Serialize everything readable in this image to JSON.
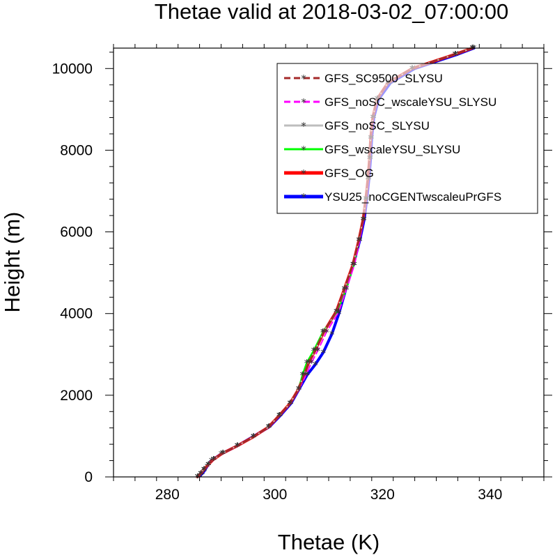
{
  "chart_data": {
    "type": "line",
    "title": "Thetae valid at 2018-03-02_07:00:00",
    "xlabel": "Thetae (K)",
    "ylabel": "Height (m)",
    "xlim": [
      270,
      350
    ],
    "ylim": [
      0,
      10500
    ],
    "xticks": [
      280,
      300,
      320,
      340
    ],
    "yticks": [
      0,
      2000,
      4000,
      6000,
      8000,
      10000
    ],
    "xtick_labels": [
      "280",
      "300",
      "320",
      "340"
    ],
    "ytick_labels": [
      "0",
      "2000",
      "4000",
      "6000",
      "8000",
      "10000"
    ],
    "grid": false,
    "legend_position": "top-right",
    "series": [
      {
        "name": "YSU25_noCGENTwscaleuPrGFS",
        "color": "#0000ff",
        "dash": "solid",
        "width": 4,
        "points": [
          [
            286.0,
            20
          ],
          [
            286.5,
            80
          ],
          [
            286.9,
            150
          ],
          [
            287.4,
            260
          ],
          [
            288.2,
            400
          ],
          [
            290.0,
            560
          ],
          [
            293.0,
            760
          ],
          [
            296.0,
            990
          ],
          [
            299.0,
            1230
          ],
          [
            301.0,
            1500
          ],
          [
            303.0,
            1800
          ],
          [
            304.5,
            2150
          ],
          [
            306.0,
            2500
          ],
          [
            307.5,
            2750
          ],
          [
            309.0,
            3050
          ],
          [
            310.6,
            3500
          ],
          [
            311.9,
            4000
          ],
          [
            313.2,
            4600
          ],
          [
            314.6,
            5200
          ],
          [
            315.8,
            5800
          ],
          [
            316.6,
            6300
          ],
          [
            317.1,
            6800
          ],
          [
            317.5,
            7300
          ],
          [
            317.8,
            7800
          ],
          [
            318.0,
            8300
          ],
          [
            318.4,
            8800
          ],
          [
            319.3,
            9250
          ],
          [
            321.5,
            9650
          ],
          [
            326.0,
            10000
          ],
          [
            334.0,
            10350
          ],
          [
            337.0,
            10500
          ]
        ]
      },
      {
        "name": "GFS_OG",
        "color": "#ff0000",
        "dash": "solid",
        "width": 4,
        "points": [
          [
            285.6,
            0
          ],
          [
            286.2,
            80
          ],
          [
            286.8,
            180
          ],
          [
            287.6,
            300
          ],
          [
            288.6,
            430
          ],
          [
            290.3,
            580
          ],
          [
            293.0,
            760
          ],
          [
            296.0,
            980
          ],
          [
            298.8,
            1220
          ],
          [
            300.8,
            1500
          ],
          [
            302.8,
            1800
          ],
          [
            304.4,
            2150
          ],
          [
            305.4,
            2500
          ],
          [
            306.3,
            2800
          ],
          [
            307.5,
            3100
          ],
          [
            309.1,
            3550
          ],
          [
            311.4,
            4050
          ],
          [
            312.9,
            4600
          ],
          [
            314.5,
            5200
          ],
          [
            315.6,
            5800
          ],
          [
            316.4,
            6300
          ],
          [
            316.9,
            6800
          ],
          [
            317.3,
            7300
          ],
          [
            317.6,
            7800
          ],
          [
            317.8,
            8300
          ],
          [
            318.2,
            8800
          ],
          [
            319.0,
            9250
          ],
          [
            321.0,
            9650
          ],
          [
            325.5,
            10000
          ],
          [
            333.5,
            10350
          ],
          [
            336.7,
            10500
          ]
        ]
      },
      {
        "name": "GFS_wscaleYSU_SLYSU",
        "color": "#00ff00",
        "dash": "solid",
        "width": 2,
        "points": [
          [
            285.6,
            0
          ],
          [
            286.2,
            80
          ],
          [
            286.8,
            180
          ],
          [
            287.6,
            300
          ],
          [
            288.6,
            430
          ],
          [
            290.3,
            580
          ],
          [
            293.0,
            760
          ],
          [
            296.0,
            980
          ],
          [
            298.8,
            1220
          ],
          [
            300.8,
            1500
          ],
          [
            302.8,
            1800
          ],
          [
            304.4,
            2150
          ],
          [
            305.1,
            2500
          ],
          [
            305.9,
            2800
          ],
          [
            307.2,
            3100
          ],
          [
            308.9,
            3550
          ],
          [
            311.6,
            4050
          ],
          [
            313.3,
            4600
          ],
          [
            314.7,
            5200
          ],
          [
            315.6,
            5800
          ],
          [
            316.4,
            6300
          ],
          [
            316.9,
            6800
          ],
          [
            317.3,
            7300
          ],
          [
            317.6,
            7800
          ],
          [
            317.8,
            8300
          ],
          [
            318.2,
            8800
          ],
          [
            319.0,
            9250
          ],
          [
            321.0,
            9650
          ],
          [
            325.5,
            10000
          ],
          [
            333.5,
            10350
          ],
          [
            336.7,
            10500
          ]
        ]
      },
      {
        "name": "GFS_noSC_SLYSU",
        "color": "#bdbdbd",
        "dash": "solid",
        "width": 2,
        "points": [
          [
            285.6,
            0
          ],
          [
            286.2,
            80
          ],
          [
            286.8,
            180
          ],
          [
            287.6,
            300
          ],
          [
            288.6,
            430
          ],
          [
            290.3,
            580
          ],
          [
            293.0,
            760
          ],
          [
            296.0,
            980
          ],
          [
            298.8,
            1220
          ],
          [
            300.8,
            1500
          ],
          [
            302.8,
            1800
          ],
          [
            304.4,
            2150
          ],
          [
            305.4,
            2500
          ],
          [
            306.3,
            2800
          ],
          [
            307.5,
            3100
          ],
          [
            309.1,
            3550
          ],
          [
            311.4,
            4050
          ],
          [
            312.9,
            4600
          ],
          [
            314.5,
            5200
          ],
          [
            315.6,
            5800
          ],
          [
            316.4,
            6300
          ],
          [
            316.9,
            6800
          ],
          [
            317.3,
            7300
          ],
          [
            317.6,
            7800
          ],
          [
            317.8,
            8300
          ],
          [
            318.2,
            8800
          ],
          [
            319.0,
            9250
          ],
          [
            321.0,
            9650
          ],
          [
            325.5,
            10000
          ],
          [
            333.5,
            10350
          ],
          [
            336.7,
            10500
          ]
        ]
      },
      {
        "name": "GFS_noSC_wscaleYSU_SLYSU",
        "color": "#ff00ff",
        "dash": "dashed",
        "width": 2,
        "points": [
          [
            285.7,
            0
          ],
          [
            286.3,
            80
          ],
          [
            286.9,
            180
          ],
          [
            287.7,
            300
          ],
          [
            288.7,
            430
          ],
          [
            290.4,
            580
          ],
          [
            293.1,
            760
          ],
          [
            296.1,
            980
          ],
          [
            298.9,
            1220
          ],
          [
            300.9,
            1500
          ],
          [
            302.9,
            1800
          ],
          [
            304.5,
            2150
          ],
          [
            305.8,
            2500
          ],
          [
            306.8,
            2800
          ],
          [
            308.0,
            3100
          ],
          [
            309.6,
            3550
          ],
          [
            311.9,
            4050
          ],
          [
            313.3,
            4600
          ],
          [
            314.8,
            5200
          ],
          [
            315.8,
            5800
          ],
          [
            316.5,
            6300
          ],
          [
            317.0,
            6800
          ],
          [
            317.4,
            7300
          ],
          [
            317.7,
            7800
          ],
          [
            317.9,
            8300
          ],
          [
            318.3,
            8800
          ],
          [
            319.1,
            9250
          ],
          [
            321.1,
            9650
          ],
          [
            325.6,
            10000
          ],
          [
            333.6,
            10350
          ],
          [
            336.8,
            10500
          ]
        ]
      },
      {
        "name": "GFS_SC9500_SLYSU",
        "color": "#a52a2a",
        "dash": "dashed",
        "width": 3,
        "points": [
          [
            285.6,
            0
          ],
          [
            286.2,
            80
          ],
          [
            286.8,
            180
          ],
          [
            287.6,
            300
          ],
          [
            288.6,
            430
          ],
          [
            290.3,
            580
          ],
          [
            293.0,
            760
          ],
          [
            296.0,
            980
          ],
          [
            298.8,
            1220
          ],
          [
            300.8,
            1500
          ],
          [
            302.8,
            1800
          ],
          [
            304.4,
            2150
          ],
          [
            305.4,
            2500
          ],
          [
            306.3,
            2800
          ],
          [
            307.5,
            3100
          ],
          [
            309.1,
            3550
          ],
          [
            311.4,
            4050
          ],
          [
            312.9,
            4600
          ],
          [
            314.5,
            5200
          ],
          [
            315.6,
            5800
          ],
          [
            316.4,
            6300
          ],
          [
            316.9,
            6800
          ],
          [
            317.3,
            7300
          ],
          [
            317.6,
            7800
          ],
          [
            317.8,
            8300
          ],
          [
            318.2,
            8800
          ],
          [
            319.0,
            9250
          ],
          [
            321.0,
            9650
          ],
          [
            325.5,
            10000
          ],
          [
            333.5,
            10350
          ],
          [
            336.7,
            10500
          ]
        ]
      }
    ],
    "legend": [
      {
        "name": "GFS_SC9500_SLYSU",
        "color": "#a52a2a",
        "dash": "dashed",
        "width": 3
      },
      {
        "name": "GFS_noSC_wscaleYSU_SLYSU",
        "color": "#ff00ff",
        "dash": "dashed",
        "width": 3
      },
      {
        "name": "GFS_noSC_SLYSU",
        "color": "#bdbdbd",
        "dash": "solid",
        "width": 3
      },
      {
        "name": "GFS_wscaleYSU_SLYSU",
        "color": "#00ff00",
        "dash": "solid",
        "width": 3
      },
      {
        "name": "GFS_OG",
        "color": "#ff0000",
        "dash": "solid",
        "width": 5
      },
      {
        "name": "YSU25_noCGENTwscaleuPrGFS",
        "color": "#0000ff",
        "dash": "solid",
        "width": 5
      }
    ],
    "marker_glyph": "*"
  }
}
